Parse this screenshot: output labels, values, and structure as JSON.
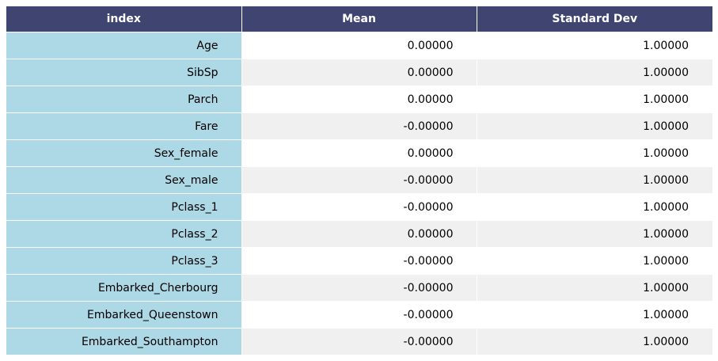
{
  "chart_data": {
    "type": "table",
    "columns": [
      "index",
      "Mean",
      "Standard Dev"
    ],
    "rows": [
      [
        "Age",
        "0.00000",
        "1.00000"
      ],
      [
        "SibSp",
        "0.00000",
        "1.00000"
      ],
      [
        "Parch",
        "0.00000",
        "1.00000"
      ],
      [
        "Fare",
        "-0.00000",
        "1.00000"
      ],
      [
        "Sex_female",
        "0.00000",
        "1.00000"
      ],
      [
        "Sex_male",
        "-0.00000",
        "1.00000"
      ],
      [
        "Pclass_1",
        "-0.00000",
        "1.00000"
      ],
      [
        "Pclass_2",
        "0.00000",
        "1.00000"
      ],
      [
        "Pclass_3",
        "-0.00000",
        "1.00000"
      ],
      [
        "Embarked_Cherbourg",
        "-0.00000",
        "1.00000"
      ],
      [
        "Embarked_Queenstown",
        "-0.00000",
        "1.00000"
      ],
      [
        "Embarked_Southampton",
        "-0.00000",
        "1.00000"
      ]
    ]
  },
  "colors": {
    "header_bg": "#3f4570",
    "header_text": "#ffffff",
    "index_bg": "#add8e6",
    "row_bg": "#ffffff",
    "row_alt_bg": "#f0f0f0"
  }
}
